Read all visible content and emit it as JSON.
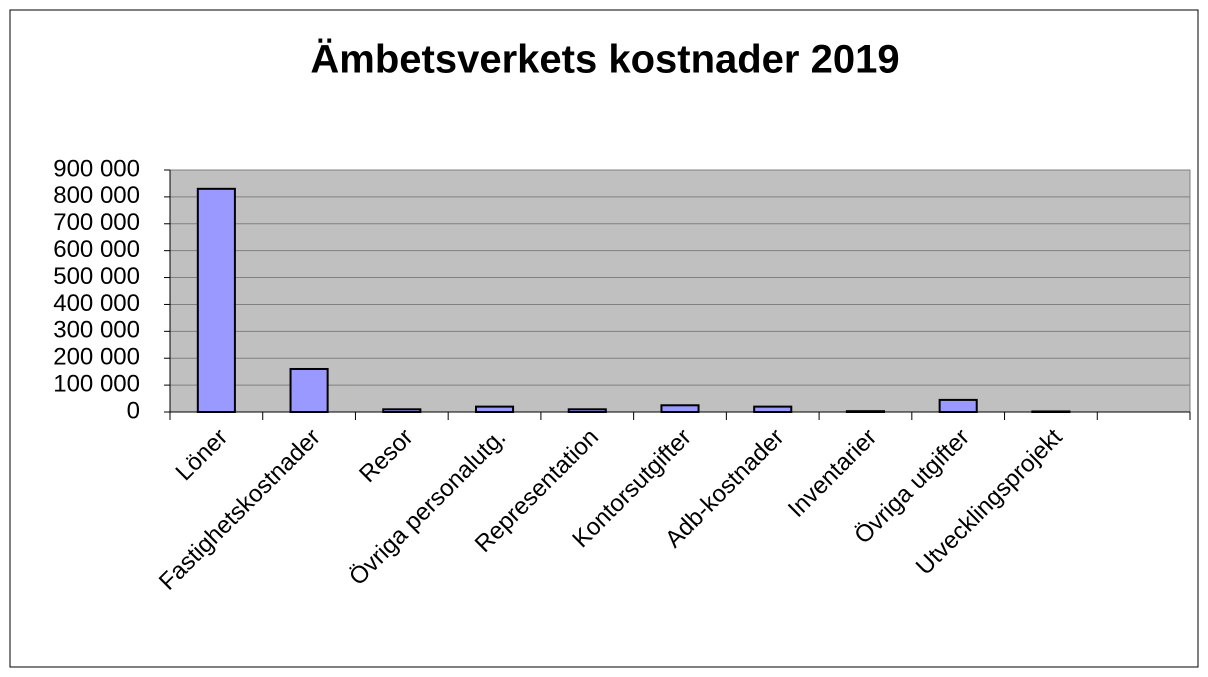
{
  "chart_data": {
    "type": "bar",
    "title": "Ämbetsverkets kostnader 2019",
    "categories": [
      "Löner",
      "Fastighetskostnader",
      "Resor",
      "Övriga personalutg.",
      "Representation",
      "Kontorsutgifter",
      "Adb-kostnader",
      "Inventarier",
      "Övriga utgifter",
      "Utvecklingsprojekt",
      null
    ],
    "values": [
      830000,
      160000,
      10000,
      20000,
      10000,
      25000,
      20000,
      3000,
      45000,
      2000,
      null
    ],
    "color": "#9999ff",
    "ylim": [
      0,
      900000
    ],
    "yticks": [
      0,
      {
        "value": 100000,
        "label": "100 000"
      },
      {
        "value": 200000,
        "label": "200 000"
      },
      {
        "value": 300000,
        "label": "300 000"
      },
      {
        "value": 400000,
        "label": "400 000"
      },
      {
        "value": 500000,
        "label": "500 000"
      },
      {
        "value": 600000,
        "label": "600 000"
      },
      {
        "value": 700000,
        "label": "700 000"
      },
      {
        "value": 800000,
        "label": "800 000"
      },
      {
        "value": 900000,
        "label": "900 000"
      }
    ],
    "grid": true
  }
}
